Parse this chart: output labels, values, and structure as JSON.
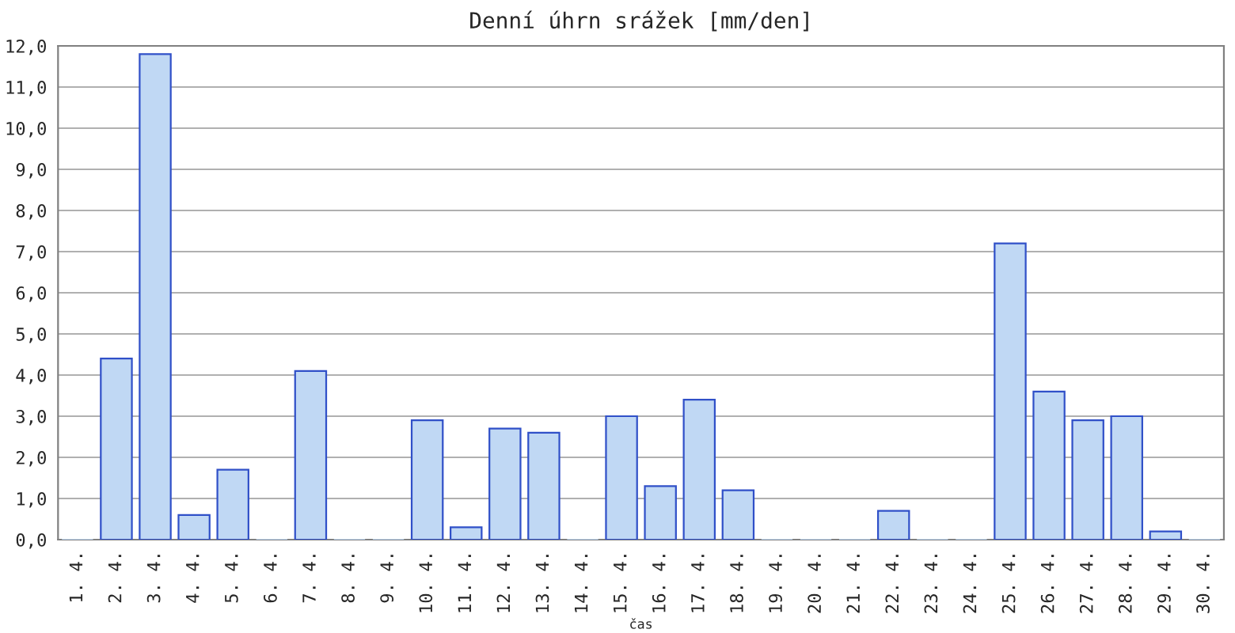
{
  "chart_data": {
    "type": "bar",
    "title": "Denní úhrn srážek [mm/den]",
    "xlabel": "čas",
    "categories": [
      "1. 4.",
      "2. 4.",
      "3. 4.",
      "4. 4.",
      "5. 4.",
      "6. 4.",
      "7. 4.",
      "8. 4.",
      "9. 4.",
      "10. 4.",
      "11. 4.",
      "12. 4.",
      "13. 4.",
      "14. 4.",
      "15. 4.",
      "16. 4.",
      "17. 4.",
      "18. 4.",
      "19. 4.",
      "20. 4.",
      "21. 4.",
      "22. 4.",
      "23. 4.",
      "24. 4.",
      "25. 4.",
      "26. 4.",
      "27. 4.",
      "28. 4.",
      "29. 4.",
      "30. 4."
    ],
    "values": [
      0,
      4.4,
      11.8,
      0.6,
      1.7,
      0,
      4.1,
      0,
      0,
      2.9,
      0.3,
      2.7,
      2.6,
      0,
      3.0,
      1.3,
      3.4,
      1.2,
      0,
      0,
      0,
      0.7,
      0,
      0,
      7.2,
      3.6,
      2.9,
      3.0,
      0.2,
      0
    ],
    "color": "#c0d8f4",
    "ylim": [
      0,
      12
    ],
    "yticks": [
      {
        "value": 0,
        "label": "0,0"
      },
      {
        "value": 1,
        "label": "1,0"
      },
      {
        "value": 2,
        "label": "2,0"
      },
      {
        "value": 3,
        "label": "3,0"
      },
      {
        "value": 4,
        "label": "4,0"
      },
      {
        "value": 5,
        "label": "5,0"
      },
      {
        "value": 6,
        "label": "6,0"
      },
      {
        "value": 7,
        "label": "7,0"
      },
      {
        "value": 8,
        "label": "8,0"
      },
      {
        "value": 9,
        "label": "9,0"
      },
      {
        "value": 10,
        "label": "10,0"
      },
      {
        "value": 11,
        "label": "11,0"
      },
      {
        "value": 12,
        "label": "12,0"
      }
    ],
    "grid": "y"
  }
}
